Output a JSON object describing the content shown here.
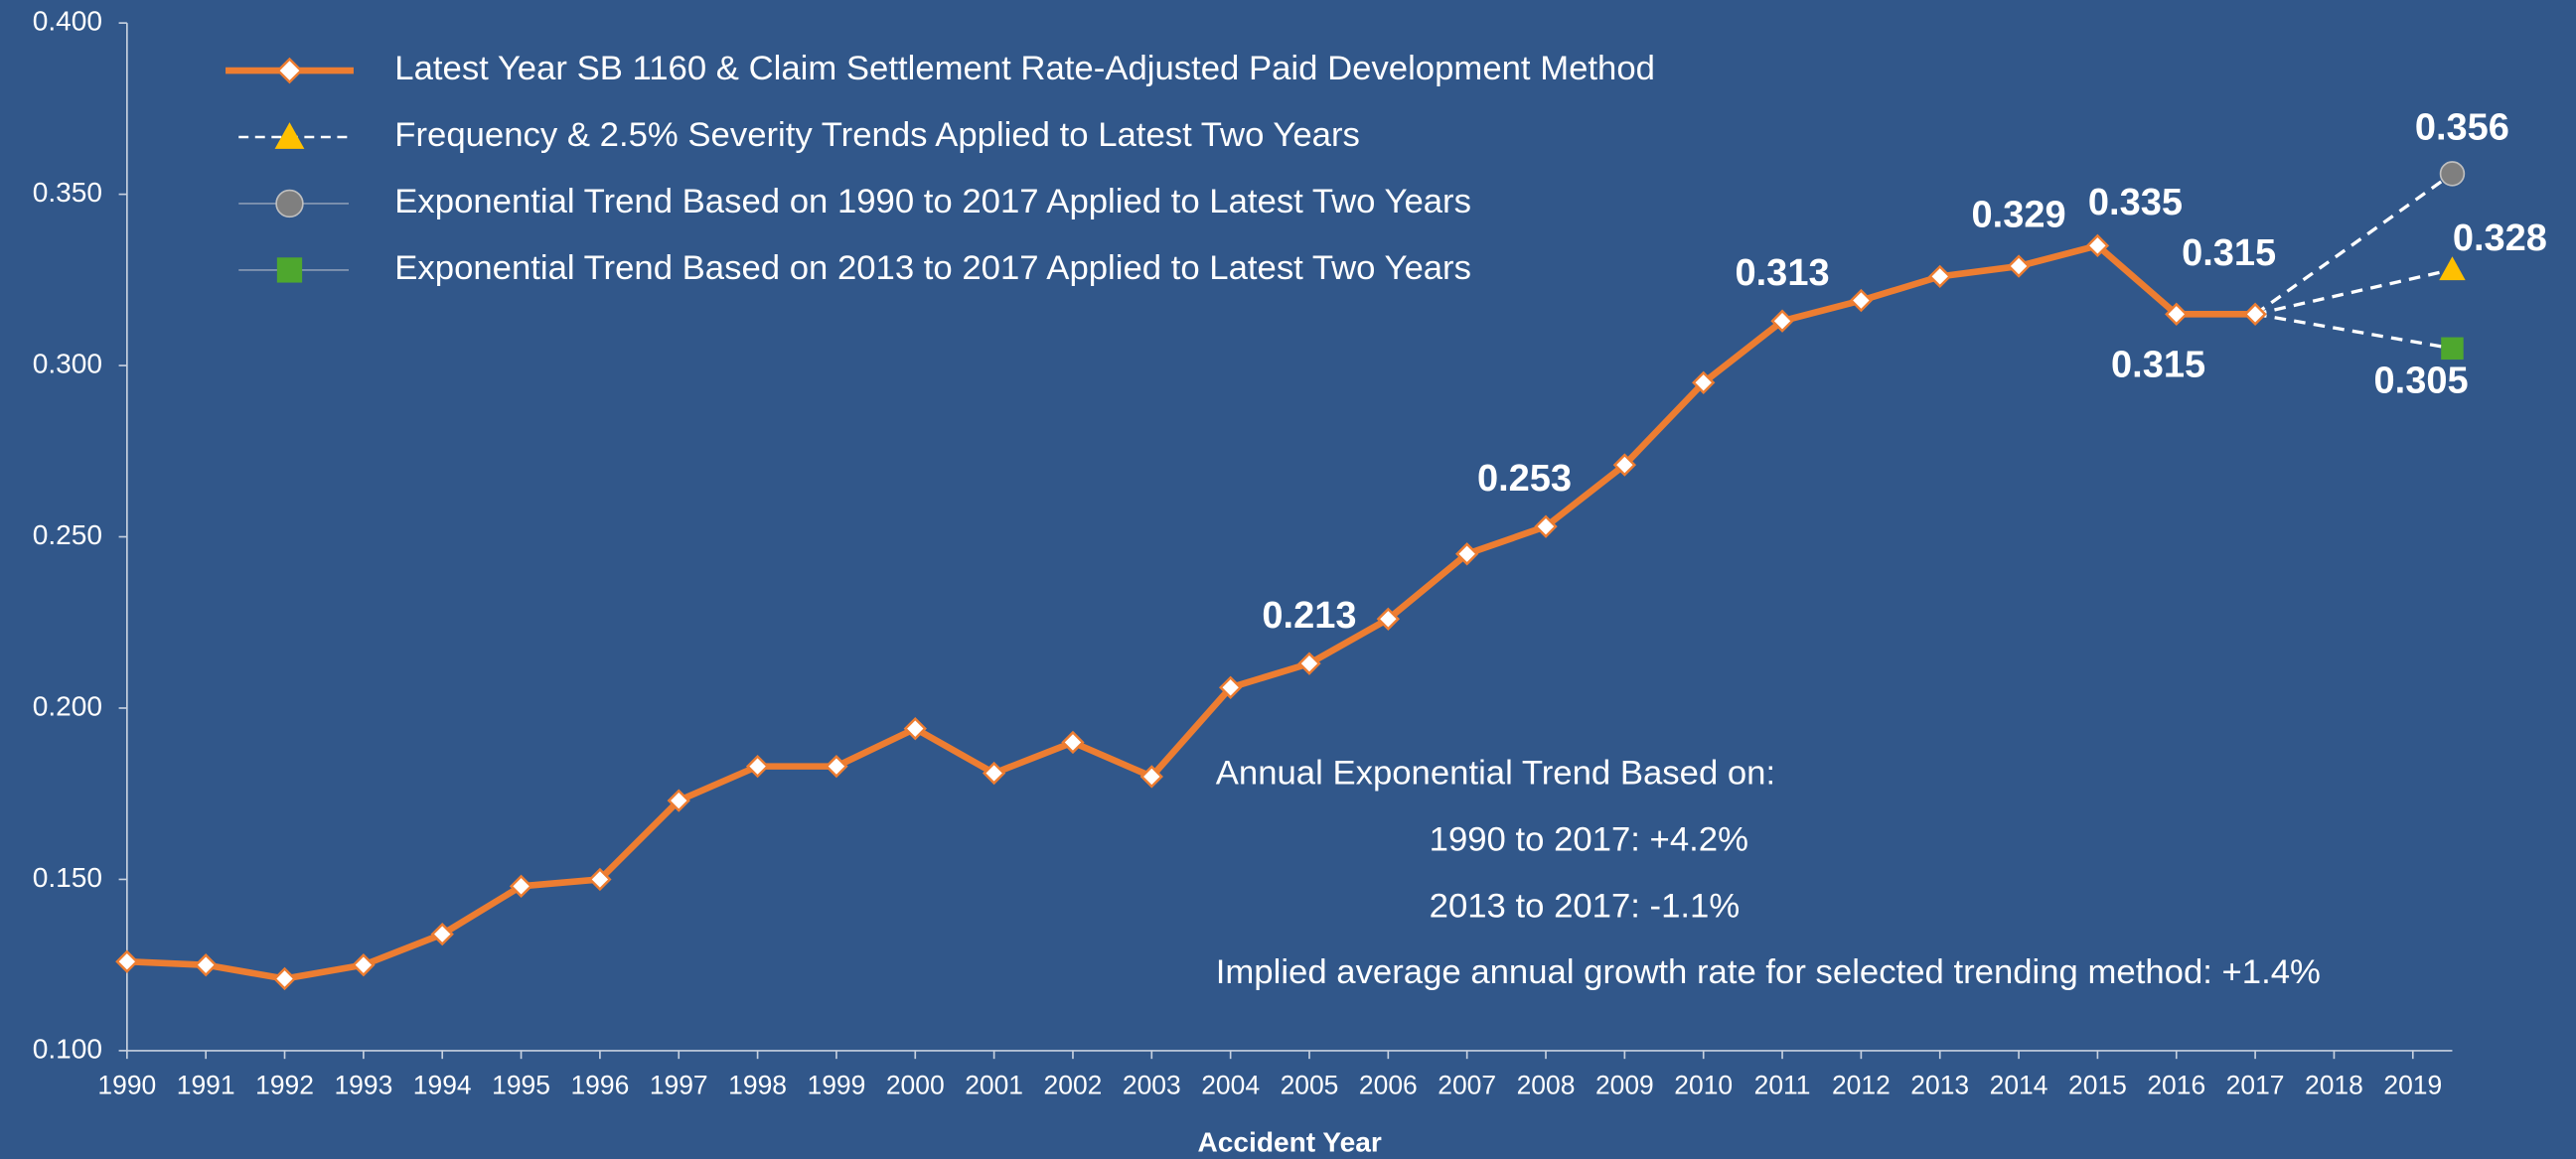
{
  "chart_data": {
    "type": "line",
    "xlabel": "Accident Year",
    "xlim": [
      1990,
      2019.5
    ],
    "xticks": [
      1990,
      1991,
      1992,
      1993,
      1994,
      1995,
      1996,
      1997,
      1998,
      1999,
      2000,
      2001,
      2002,
      2003,
      2004,
      2005,
      2006,
      2007,
      2008,
      2009,
      2010,
      2011,
      2012,
      2013,
      2014,
      2015,
      2016,
      2017,
      2018,
      2019
    ],
    "ylim": [
      0.1,
      0.4
    ],
    "yticks": [
      {
        "value": 0.1,
        "label": "0.100"
      },
      {
        "value": 0.15,
        "label": "0.150"
      },
      {
        "value": 0.2,
        "label": "0.200"
      },
      {
        "value": 0.25,
        "label": "0.250"
      },
      {
        "value": 0.3,
        "label": "0.300"
      },
      {
        "value": 0.35,
        "label": "0.350"
      },
      {
        "value": 0.4,
        "label": "0.400"
      }
    ],
    "grid": false,
    "legend": "upper left",
    "series": [
      {
        "name": "Latest Year SB 1160 & Claim Settlement Rate-Adjusted Paid Development Method",
        "color": "#ed7d31",
        "marker": "diamond",
        "label_color": "#ffffff",
        "x": [
          1990,
          1991,
          1992,
          1993,
          1994,
          1995,
          1996,
          1997,
          1998,
          1999,
          2000,
          2001,
          2002,
          2003,
          2004,
          2005,
          2006,
          2007,
          2008,
          2009,
          2010,
          2011,
          2012,
          2013,
          2014,
          2015,
          2016,
          2017
        ],
        "values": [
          0.126,
          0.125,
          0.121,
          0.125,
          0.134,
          0.148,
          0.15,
          0.173,
          0.183,
          0.183,
          0.194,
          0.181,
          0.19,
          0.18,
          0.206,
          0.213,
          0.226,
          0.245,
          0.253,
          0.271,
          0.295,
          0.313,
          0.319,
          0.326,
          0.329,
          0.335,
          0.315,
          0.315
        ],
        "value_labels": [
          null,
          null,
          null,
          null,
          null,
          null,
          null,
          null,
          null,
          null,
          null,
          null,
          null,
          null,
          null,
          "0.213",
          null,
          null,
          "0.253",
          null,
          null,
          "0.313",
          null,
          null,
          "0.329",
          "0.335",
          "0.315",
          "0.315"
        ]
      },
      {
        "name": "Frequency & 2.5% Severity Trends Applied to Latest Two Years",
        "color": "#ffc000",
        "marker": "triangle",
        "label_color": "#ffc000",
        "x": [
          2017,
          2019.5
        ],
        "values": [
          0.315,
          0.328
        ],
        "value_labels": [
          null,
          "0.328"
        ]
      },
      {
        "name": "Exponential Trend Based on 1990 to 2017 Applied to Latest Two Years",
        "color": "#7f7f7f",
        "marker": "circle",
        "label_color": "#ffffff",
        "x": [
          2017,
          2019.5
        ],
        "values": [
          0.315,
          0.356
        ],
        "value_labels": [
          null,
          "0.356"
        ]
      },
      {
        "name": "Exponential Trend Based on 2013 to 2017 Applied to Latest Two Years",
        "color": "#4ea72e",
        "marker": "square",
        "label_color": "#ffffff",
        "x": [
          2017,
          2019.5
        ],
        "values": [
          0.315,
          0.305
        ],
        "value_labels": [
          null,
          "0.305"
        ]
      }
    ],
    "annotations": [
      "Annual Exponential Trend Based on:",
      "1990 to 2017: +4.2%",
      "2013 to 2017: -1.1%",
      "Implied average annual growth rate for selected trending method: +1.4%"
    ]
  }
}
